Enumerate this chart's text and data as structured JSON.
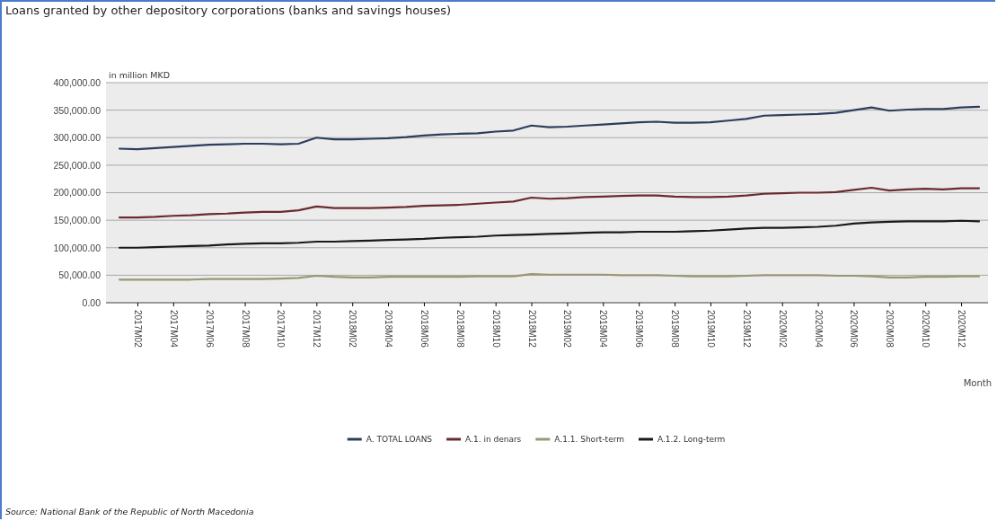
{
  "chart_data": {
    "type": "line",
    "title": "Loans granted by other depository corporations (banks and savings houses)",
    "ylabel": "in million MKD",
    "xlabel": "Month",
    "categories": [
      null,
      "2017M02",
      null,
      "2017M04",
      null,
      "2017M06",
      null,
      "2017M08",
      null,
      "2017M10",
      null,
      "2017M12",
      null,
      "2018M02",
      null,
      "2018M04",
      null,
      "2018M06",
      null,
      "2018M08",
      null,
      "2018M10",
      null,
      "2018M12",
      null,
      "2019M02",
      null,
      "2019M04",
      null,
      "2019M06",
      null,
      "2019M08",
      null,
      "2019M10",
      null,
      "2019M12",
      null,
      "2020M02",
      null,
      "2020M04",
      null,
      "2020M06",
      null,
      "2020M08",
      null,
      "2020M10",
      null,
      "2020M12",
      null
    ],
    "series": [
      {
        "name": "A. TOTAL LOANS",
        "color": "#2c3e5c",
        "values": [
          280000,
          279000,
          281000,
          283000,
          285000,
          287000,
          288000,
          289000,
          289000,
          288000,
          289000,
          300000,
          297000,
          297000,
          298000,
          299000,
          301000,
          304000,
          306000,
          307000,
          308000,
          311000,
          313000,
          322000,
          319000,
          320000,
          322000,
          324000,
          326000,
          328000,
          329000,
          327000,
          327000,
          328000,
          331000,
          334000,
          340000,
          341000,
          342000,
          343000,
          345000,
          350000,
          355000,
          349000,
          351000,
          352000,
          352000,
          355000,
          356000
        ]
      },
      {
        "name": "A.1. in denars",
        "color": "#6b2a2e",
        "values": [
          155000,
          155000,
          156000,
          158000,
          159000,
          161000,
          162000,
          164000,
          165000,
          165000,
          168000,
          175000,
          172000,
          172000,
          172000,
          173000,
          174000,
          176000,
          177000,
          178000,
          180000,
          182000,
          184000,
          191000,
          189000,
          190000,
          192000,
          193000,
          194000,
          195000,
          195000,
          193000,
          192000,
          192000,
          193000,
          195000,
          198000,
          199000,
          200000,
          200000,
          201000,
          205000,
          209000,
          204000,
          206000,
          207000,
          206000,
          208000,
          208000
        ]
      },
      {
        "name": "A.1.1. Short-term",
        "color": "#9a9870",
        "values": [
          42000,
          42000,
          42000,
          42000,
          42000,
          43000,
          43000,
          43000,
          43000,
          44000,
          45000,
          49000,
          47000,
          46000,
          46000,
          47000,
          47000,
          47000,
          47000,
          47000,
          48000,
          48000,
          48000,
          52000,
          51000,
          51000,
          51000,
          51000,
          50000,
          50000,
          50000,
          49000,
          48000,
          48000,
          48000,
          49000,
          50000,
          50000,
          50000,
          50000,
          49000,
          49000,
          48000,
          46000,
          46000,
          47000,
          47000,
          48000,
          48000
        ]
      },
      {
        "name": "A.1.2. Long-term",
        "color": "#1a1a1a",
        "values": [
          100000,
          100000,
          101000,
          102000,
          103000,
          104000,
          106000,
          107000,
          108000,
          108000,
          109000,
          111000,
          111000,
          112000,
          113000,
          114000,
          115000,
          116000,
          118000,
          119000,
          120000,
          122000,
          123000,
          124000,
          125000,
          126000,
          127000,
          128000,
          128000,
          129000,
          129000,
          129000,
          130000,
          131000,
          133000,
          135000,
          136000,
          136000,
          137000,
          138000,
          140000,
          144000,
          146000,
          147000,
          148000,
          148000,
          148000,
          149000,
          148000
        ]
      }
    ],
    "ylim": [
      0,
      400000
    ],
    "yticks": [
      {
        "value": 0,
        "label": "0.00"
      },
      {
        "value": 50000,
        "label": "50,000.00"
      },
      {
        "value": 100000,
        "label": "100,000.00"
      },
      {
        "value": 150000,
        "label": "150,000.00"
      },
      {
        "value": 200000,
        "label": "200,000.00"
      },
      {
        "value": 250000,
        "label": "250,000.00"
      },
      {
        "value": 300000,
        "label": "300,000.00"
      },
      {
        "value": 350000,
        "label": "350,000.00"
      },
      {
        "value": 400000,
        "label": "400,000.00"
      }
    ],
    "grid": "y",
    "legend": "bottom",
    "line_style": "solid",
    "marker": "none",
    "annotations": [
      "Source: National Bank of the Republic of North Macedonia"
    ]
  }
}
